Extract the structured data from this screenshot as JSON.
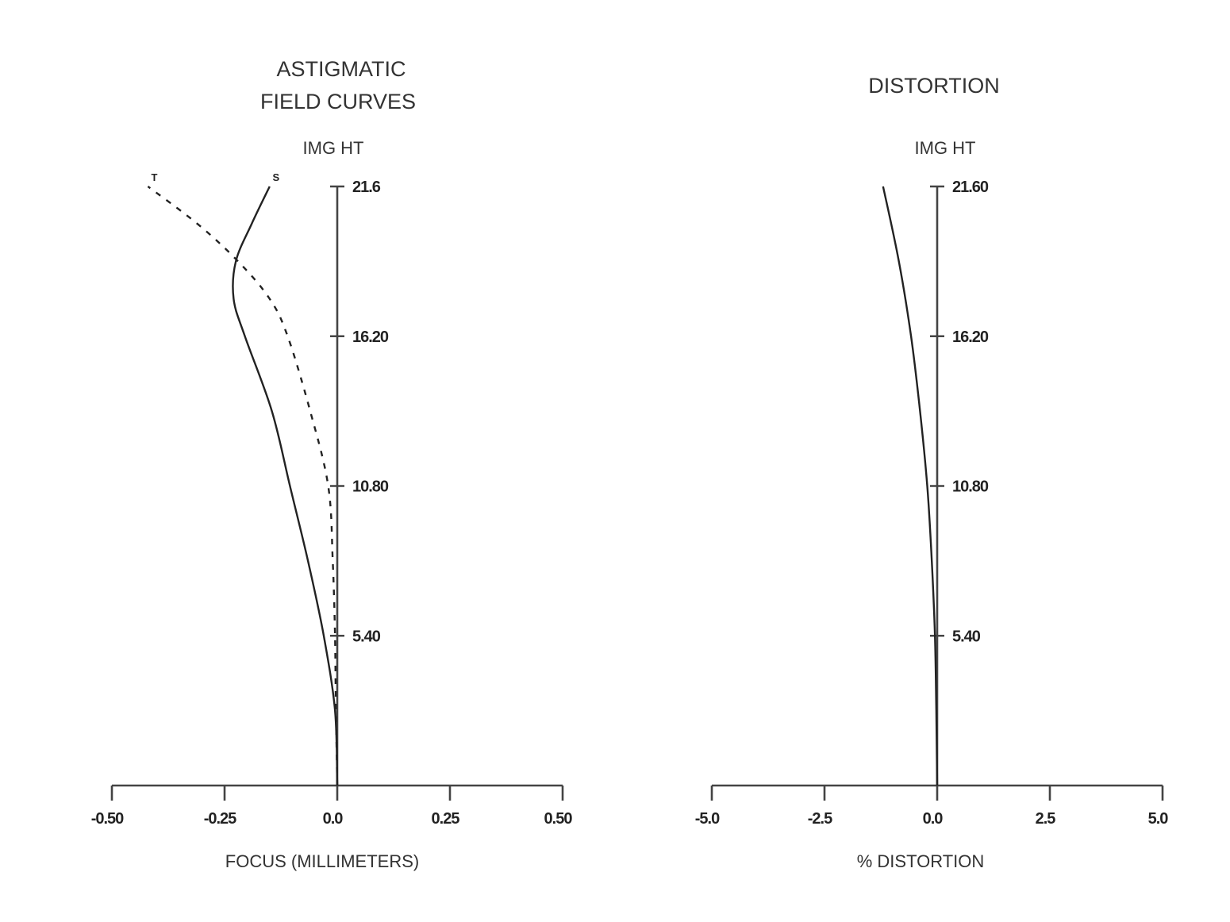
{
  "chart_data": [
    {
      "type": "line",
      "title_lines": [
        "ASTIGMATIC",
        "FIELD CURVES"
      ],
      "ylabel": "IMG HT",
      "xlabel": "FOCUS (MILLIMETERS)",
      "xlim": [
        -0.5,
        0.5
      ],
      "ylim": [
        0,
        21.6
      ],
      "x_tick_values": [
        -0.5,
        -0.25,
        0.0,
        0.25,
        0.5
      ],
      "x_tick_labels": [
        "-0.50",
        "-0.25",
        "0.0",
        "0.25",
        "0.50"
      ],
      "y_tick_values": [
        5.4,
        10.8,
        16.2,
        21.6
      ],
      "y_tick_labels": [
        "5.40",
        "10.80",
        "16.20",
        "21.6"
      ],
      "series": [
        {
          "name": "S",
          "style": "solid",
          "points": [
            [
              0.0,
              0.0
            ],
            [
              -0.005,
              2.7
            ],
            [
              -0.03,
              5.4
            ],
            [
              -0.065,
              8.1
            ],
            [
              -0.105,
              10.8
            ],
            [
              -0.145,
              13.5
            ],
            [
              -0.205,
              16.2
            ],
            [
              -0.23,
              17.55
            ],
            [
              -0.225,
              18.9
            ],
            [
              -0.19,
              20.25
            ],
            [
              -0.15,
              21.6
            ]
          ]
        },
        {
          "name": "T",
          "style": "dashed",
          "points": [
            [
              0.0,
              0.0
            ],
            [
              -0.003,
              2.7
            ],
            [
              -0.005,
              5.4
            ],
            [
              -0.01,
              8.1
            ],
            [
              -0.02,
              10.8
            ],
            [
              -0.06,
              13.5
            ],
            [
              -0.11,
              16.2
            ],
            [
              -0.15,
              17.55
            ],
            [
              -0.22,
              18.9
            ],
            [
              -0.31,
              20.25
            ],
            [
              -0.42,
              21.6
            ]
          ]
        }
      ]
    },
    {
      "type": "line",
      "title_lines": [
        "DISTORTION"
      ],
      "ylabel": "IMG HT",
      "xlabel": "%  DISTORTION",
      "xlim": [
        -5.0,
        5.0
      ],
      "ylim": [
        0,
        21.6
      ],
      "x_tick_values": [
        -5.0,
        -2.5,
        0.0,
        2.5,
        5.0
      ],
      "x_tick_labels": [
        "-5.0",
        "-2.5",
        "0.0",
        "2.5",
        "5.0"
      ],
      "y_tick_values": [
        5.4,
        10.8,
        16.2,
        21.6
      ],
      "y_tick_labels": [
        "5.40",
        "10.80",
        "16.20",
        "21.60"
      ],
      "series": [
        {
          "name": "",
          "style": "solid",
          "points": [
            [
              0.0,
              0.0
            ],
            [
              -0.02,
              2.7
            ],
            [
              -0.05,
              5.4
            ],
            [
              -0.12,
              8.1
            ],
            [
              -0.22,
              10.8
            ],
            [
              -0.38,
              13.5
            ],
            [
              -0.58,
              16.2
            ],
            [
              -0.85,
              18.9
            ],
            [
              -1.2,
              21.6
            ]
          ]
        }
      ]
    }
  ]
}
